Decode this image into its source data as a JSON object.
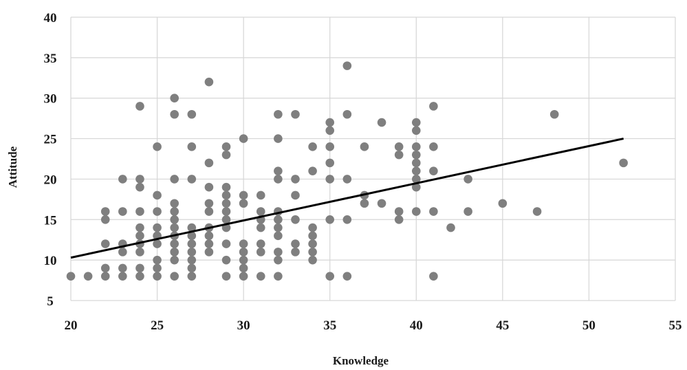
{
  "chart_data": {
    "type": "scatter",
    "title": "",
    "xlabel": "Knowledge",
    "ylabel": "Attitude",
    "xlim": [
      20,
      55
    ],
    "ylim": [
      5,
      40
    ],
    "x_ticks": [
      20,
      25,
      30,
      35,
      40,
      45,
      50,
      55
    ],
    "y_ticks": [
      5,
      10,
      15,
      20,
      25,
      30,
      35,
      40
    ],
    "grid": true,
    "point_color": "#7f7f7f",
    "trendline": {
      "x": [
        20,
        52
      ],
      "y": [
        10.3,
        25.0
      ],
      "color": "#000000"
    },
    "points": [
      [
        20,
        8
      ],
      [
        21,
        8
      ],
      [
        22,
        8
      ],
      [
        22,
        9
      ],
      [
        22,
        12
      ],
      [
        22,
        15
      ],
      [
        22,
        16
      ],
      [
        23,
        8
      ],
      [
        23,
        9
      ],
      [
        23,
        11
      ],
      [
        23,
        12
      ],
      [
        23,
        16
      ],
      [
        23,
        20
      ],
      [
        24,
        8
      ],
      [
        24,
        9
      ],
      [
        24,
        11
      ],
      [
        24,
        12
      ],
      [
        24,
        13
      ],
      [
        24,
        14
      ],
      [
        24,
        16
      ],
      [
        24,
        19
      ],
      [
        24,
        20
      ],
      [
        24,
        29
      ],
      [
        25,
        8
      ],
      [
        25,
        9
      ],
      [
        25,
        10
      ],
      [
        25,
        12
      ],
      [
        25,
        13
      ],
      [
        25,
        14
      ],
      [
        25,
        16
      ],
      [
        25,
        18
      ],
      [
        25,
        24
      ],
      [
        26,
        8
      ],
      [
        26,
        10
      ],
      [
        26,
        11
      ],
      [
        26,
        12
      ],
      [
        26,
        13
      ],
      [
        26,
        14
      ],
      [
        26,
        15
      ],
      [
        26,
        16
      ],
      [
        26,
        17
      ],
      [
        26,
        20
      ],
      [
        26,
        28
      ],
      [
        26,
        30
      ],
      [
        27,
        8
      ],
      [
        27,
        9
      ],
      [
        27,
        10
      ],
      [
        27,
        11
      ],
      [
        27,
        12
      ],
      [
        27,
        13
      ],
      [
        27,
        14
      ],
      [
        27,
        20
      ],
      [
        27,
        24
      ],
      [
        27,
        28
      ],
      [
        28,
        11
      ],
      [
        28,
        12
      ],
      [
        28,
        13
      ],
      [
        28,
        14
      ],
      [
        28,
        16
      ],
      [
        28,
        17
      ],
      [
        28,
        19
      ],
      [
        28,
        22
      ],
      [
        28,
        32
      ],
      [
        29,
        8
      ],
      [
        29,
        10
      ],
      [
        29,
        12
      ],
      [
        29,
        14
      ],
      [
        29,
        15
      ],
      [
        29,
        16
      ],
      [
        29,
        17
      ],
      [
        29,
        18
      ],
      [
        29,
        19
      ],
      [
        29,
        23
      ],
      [
        29,
        24
      ],
      [
        30,
        8
      ],
      [
        30,
        9
      ],
      [
        30,
        10
      ],
      [
        30,
        11
      ],
      [
        30,
        12
      ],
      [
        30,
        17
      ],
      [
        30,
        18
      ],
      [
        30,
        25
      ],
      [
        31,
        8
      ],
      [
        31,
        11
      ],
      [
        31,
        12
      ],
      [
        31,
        14
      ],
      [
        31,
        15
      ],
      [
        31,
        16
      ],
      [
        31,
        18
      ],
      [
        32,
        8
      ],
      [
        32,
        10
      ],
      [
        32,
        11
      ],
      [
        32,
        13
      ],
      [
        32,
        14
      ],
      [
        32,
        15
      ],
      [
        32,
        16
      ],
      [
        32,
        20
      ],
      [
        32,
        21
      ],
      [
        32,
        25
      ],
      [
        32,
        28
      ],
      [
        33,
        11
      ],
      [
        33,
        12
      ],
      [
        33,
        15
      ],
      [
        33,
        18
      ],
      [
        33,
        20
      ],
      [
        33,
        28
      ],
      [
        34,
        10
      ],
      [
        34,
        11
      ],
      [
        34,
        12
      ],
      [
        34,
        13
      ],
      [
        34,
        14
      ],
      [
        34,
        21
      ],
      [
        34,
        24
      ],
      [
        35,
        8
      ],
      [
        35,
        15
      ],
      [
        35,
        20
      ],
      [
        35,
        22
      ],
      [
        35,
        24
      ],
      [
        35,
        26
      ],
      [
        35,
        27
      ],
      [
        36,
        8
      ],
      [
        36,
        15
      ],
      [
        36,
        20
      ],
      [
        36,
        28
      ],
      [
        36,
        34
      ],
      [
        37,
        17
      ],
      [
        37,
        18
      ],
      [
        37,
        24
      ],
      [
        38,
        17
      ],
      [
        38,
        27
      ],
      [
        39,
        15
      ],
      [
        39,
        16
      ],
      [
        39,
        23
      ],
      [
        39,
        24
      ],
      [
        40,
        16
      ],
      [
        40,
        19
      ],
      [
        40,
        20
      ],
      [
        40,
        21
      ],
      [
        40,
        22
      ],
      [
        40,
        23
      ],
      [
        40,
        24
      ],
      [
        40,
        26
      ],
      [
        40,
        27
      ],
      [
        41,
        8
      ],
      [
        41,
        16
      ],
      [
        41,
        21
      ],
      [
        41,
        24
      ],
      [
        41,
        29
      ],
      [
        42,
        14
      ],
      [
        43,
        16
      ],
      [
        43,
        20
      ],
      [
        45,
        17
      ],
      [
        47,
        16
      ],
      [
        48,
        28
      ],
      [
        52,
        22
      ]
    ]
  }
}
